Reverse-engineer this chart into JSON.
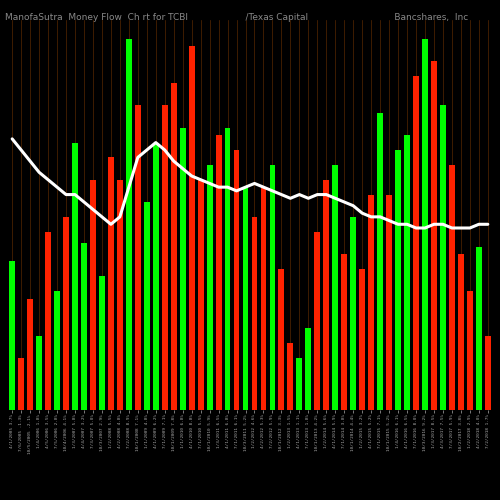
{
  "title": "ManofaSutra  Money Flow  Ch rt for TCBI                    /Texas Capital                              Bancshares,  Inc",
  "background_color": "#000000",
  "bar_colors": [
    "green",
    "red",
    "red",
    "green",
    "red",
    "green",
    "red",
    "green",
    "green",
    "red",
    "green",
    "red",
    "red",
    "green",
    "red",
    "green",
    "green",
    "red",
    "red",
    "green",
    "red",
    "red",
    "green",
    "red",
    "green",
    "red",
    "green",
    "red",
    "red",
    "green",
    "red",
    "red",
    "green",
    "green",
    "red",
    "red",
    "green",
    "red",
    "green",
    "red",
    "red",
    "green",
    "red",
    "green",
    "green",
    "red",
    "green",
    "red",
    "green",
    "red",
    "red",
    "red",
    "green",
    "red"
  ],
  "bar_heights": [
    0.4,
    0.14,
    0.3,
    0.2,
    0.48,
    0.32,
    0.52,
    0.72,
    0.45,
    0.62,
    0.36,
    0.68,
    0.62,
    1.0,
    0.82,
    0.56,
    0.72,
    0.82,
    0.88,
    0.76,
    0.98,
    0.62,
    0.66,
    0.74,
    0.76,
    0.7,
    0.6,
    0.52,
    0.6,
    0.66,
    0.38,
    0.18,
    0.14,
    0.22,
    0.48,
    0.62,
    0.66,
    0.42,
    0.52,
    0.38,
    0.58,
    0.8,
    0.58,
    0.7,
    0.74,
    0.9,
    1.0,
    0.94,
    0.82,
    0.66,
    0.42,
    0.32,
    0.44,
    0.2
  ],
  "line_y_normalized": [
    0.73,
    0.7,
    0.67,
    0.64,
    0.62,
    0.6,
    0.58,
    0.58,
    0.56,
    0.54,
    0.52,
    0.5,
    0.52,
    0.6,
    0.68,
    0.7,
    0.72,
    0.7,
    0.67,
    0.65,
    0.63,
    0.62,
    0.61,
    0.6,
    0.6,
    0.59,
    0.6,
    0.61,
    0.6,
    0.59,
    0.58,
    0.57,
    0.58,
    0.57,
    0.58,
    0.58,
    0.57,
    0.56,
    0.55,
    0.53,
    0.52,
    0.52,
    0.51,
    0.5,
    0.5,
    0.49,
    0.49,
    0.5,
    0.5,
    0.49,
    0.49,
    0.49,
    0.5,
    0.5
  ],
  "grid_color": "#7B3800",
  "line_color": "#ffffff",
  "tick_color": "#aaaaaa",
  "title_color": "#888888",
  "title_fontsize": 6.5,
  "bar_width": 0.65,
  "ylim": [
    0,
    1.05
  ],
  "tick_labels": [
    "4/1/2005 3.7%",
    "7/6/2005 -1.3%",
    "10/5/2005 -2.1%",
    "1/4/2006 1.8%",
    "4/5/2006 3.5%",
    "7/5/2006 2.8%",
    "10/4/2006 4.1%",
    "1/3/2007 5.8%",
    "4/4/2007 3.2%",
    "7/3/2007 5.0%",
    "10/3/2007 2.9%",
    "1/2/2008 5.5%",
    "4/2/2008 4.8%",
    "7/2/2008 8.9%",
    "10/1/2008 7.1%",
    "1/1/2009 4.8%",
    "4/1/2009 6.2%",
    "7/1/2009 7.1%",
    "10/1/2009 7.8%",
    "1/1/2010 6.8%",
    "4/1/2010 8.8%",
    "7/1/2010 5.5%",
    "10/1/2010 5.9%",
    "1/3/2011 6.5%",
    "4/1/2011 6.8%",
    "7/1/2011 6.1%",
    "10/3/2011 5.2%",
    "1/2/2012 4.6%",
    "4/2/2012 5.3%",
    "7/2/2012 5.9%",
    "10/1/2012 3.3%",
    "1/2/2013 1.5%",
    "4/1/2013 1.1%",
    "7/1/2013 1.8%",
    "10/1/2013 4.2%",
    "1/2/2014 5.6%",
    "4/1/2014 5.9%",
    "7/1/2014 3.8%",
    "10/1/2014 4.4%",
    "1/2/2015 3.2%",
    "4/1/2015 5.2%",
    "7/1/2015 7.1%",
    "10/1/2015 5.2%",
    "1/4/2016 6.1%",
    "4/1/2016 6.5%",
    "7/1/2016 8.0%",
    "10/3/2016 9.2%",
    "1/3/2017 8.5%",
    "4/3/2017 7.5%",
    "7/3/2017 5.9%",
    "10/2/2017 3.8%",
    "1/2/2018 2.9%",
    "4/2/2018 4.0%",
    "7/2/2018 1.7%"
  ]
}
